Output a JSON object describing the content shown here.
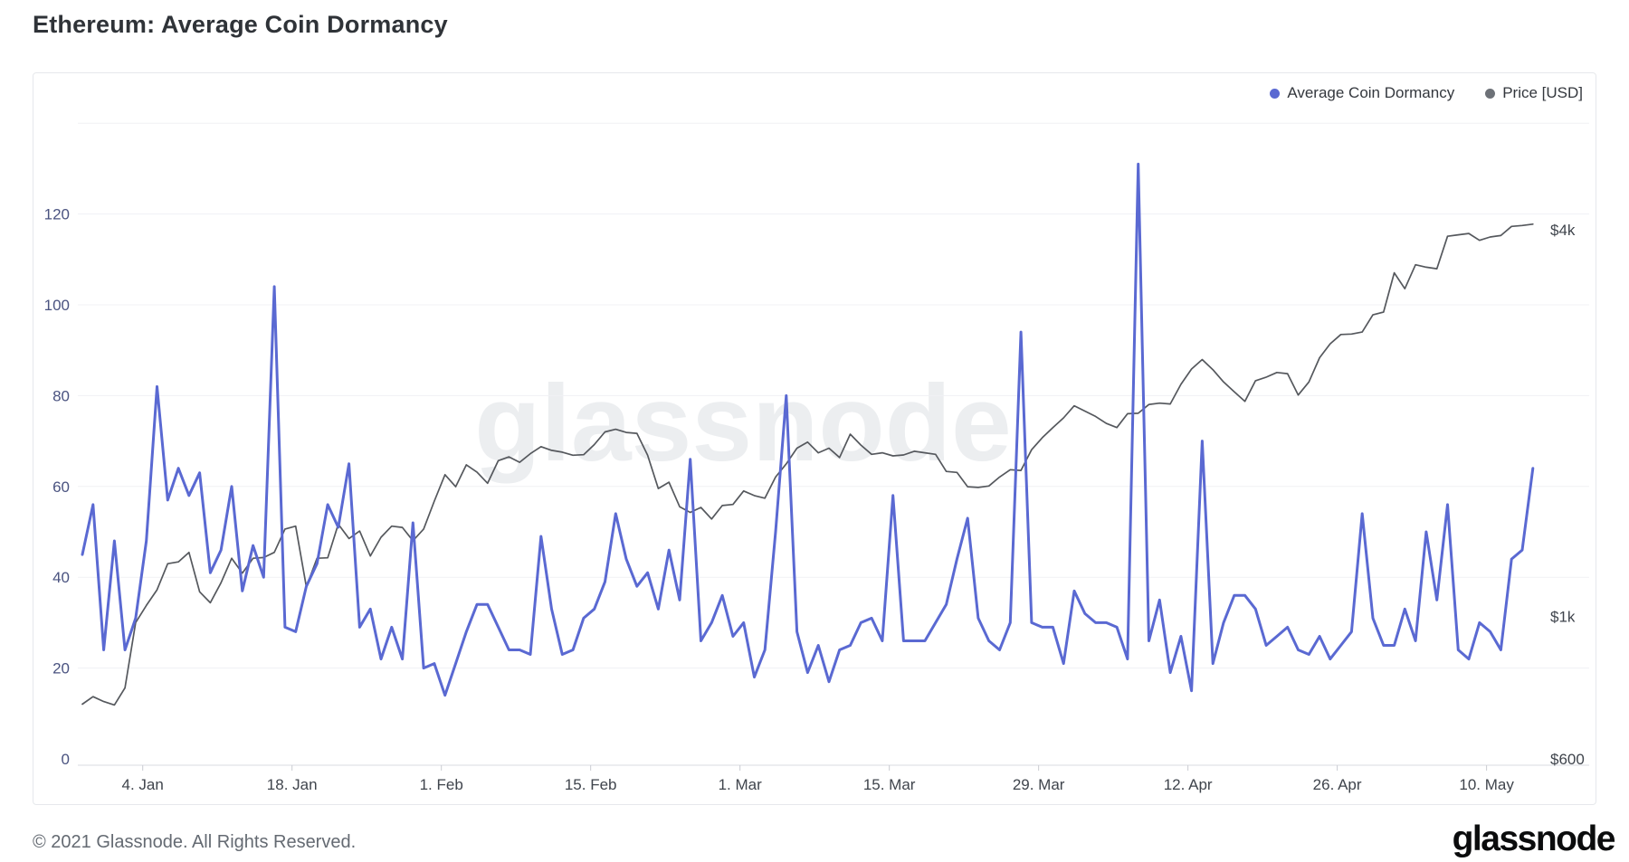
{
  "page_title": "Ethereum: Average Coin Dormancy",
  "legend": {
    "items": [
      {
        "label": "Average Coin Dormancy",
        "color": "#5a69d2"
      },
      {
        "label": "Price [USD]",
        "color": "#6d7177"
      }
    ]
  },
  "watermark": "glassnode",
  "footer": {
    "copyright": "© 2021 Glassnode. All Rights Reserved.",
    "logo": "glassnode"
  },
  "chart_data": {
    "type": "line",
    "title": "Ethereum: Average Coin Dormancy",
    "x_start_date": "2020-12-29",
    "x_interval_days": 1,
    "x_tick_labels": [
      "4. Jan",
      "18. Jan",
      "1. Feb",
      "15. Feb",
      "1. Mar",
      "15. Mar",
      "29. Mar",
      "12. Apr",
      "26. Apr",
      "10. May"
    ],
    "grid": "horizontal-only",
    "legend_position": "top-right",
    "watermark_text": "glassnode",
    "y_axis_left": {
      "labeled_ticks": [
        0,
        20,
        40,
        60,
        80,
        100,
        120
      ],
      "gridline_ticks": [
        20,
        40,
        60,
        80,
        100,
        120,
        140
      ],
      "min": 0,
      "max": 140,
      "label_color": "#4a5380"
    },
    "y_axis_right": {
      "scale": "log",
      "ticks": [
        {
          "label": "$4k",
          "value": 4000
        },
        {
          "label": "$1k",
          "value": 1000
        },
        {
          "label": "$600",
          "value": 600
        }
      ],
      "label_color": "#3f444c"
    },
    "series": [
      {
        "name": "Average Coin Dormancy",
        "axis": "left",
        "color": "#5a69d2",
        "line_width": 3,
        "values": [
          45,
          56,
          24,
          48,
          24,
          31,
          48,
          82,
          57,
          64,
          58,
          63,
          41,
          46,
          60,
          37,
          47,
          40,
          104,
          29,
          28,
          38,
          43,
          56,
          51,
          65,
          29,
          33,
          22,
          29,
          22,
          52,
          20,
          21,
          14,
          21,
          28,
          34,
          34,
          29,
          24,
          24,
          23,
          49,
          33,
          23,
          24,
          31,
          33,
          39,
          54,
          44,
          38,
          41,
          33,
          46,
          35,
          66,
          26,
          30,
          36,
          27,
          30,
          18,
          24,
          50,
          80,
          28,
          19,
          25,
          17,
          24,
          25,
          30,
          31,
          26,
          58,
          26,
          26,
          26,
          30,
          34,
          44,
          53,
          31,
          26,
          24,
          30,
          94,
          30,
          29,
          29,
          21,
          37,
          32,
          30,
          30,
          29,
          22,
          131,
          26,
          35,
          19,
          27,
          15,
          70,
          21,
          30,
          36,
          36,
          33,
          25,
          27,
          29,
          24,
          23,
          27,
          22,
          25,
          28,
          54,
          31,
          25,
          25,
          33,
          26,
          50,
          35,
          56,
          24,
          22,
          30,
          28,
          24,
          44,
          46,
          64
        ]
      },
      {
        "name": "Price [USD]",
        "axis": "right",
        "color": "#55585d",
        "line_width": 1.7,
        "values": [
          730,
          750,
          737,
          728,
          774,
          978,
          1040,
          1100,
          1208,
          1216,
          1258,
          1092,
          1050,
          1128,
          1232,
          1168,
          1232,
          1235,
          1258,
          1368,
          1382,
          1112,
          1232,
          1234,
          1392,
          1322,
          1358,
          1242,
          1328,
          1382,
          1376,
          1312,
          1368,
          1512,
          1662,
          1592,
          1722,
          1678,
          1612,
          1748,
          1772,
          1738,
          1792,
          1838,
          1814,
          1802,
          1782,
          1786,
          1852,
          1938,
          1956,
          1934,
          1928,
          1782,
          1582,
          1618,
          1482,
          1452,
          1478,
          1418,
          1488,
          1494,
          1568,
          1542,
          1528,
          1648,
          1728,
          1828,
          1868,
          1798,
          1828,
          1768,
          1922,
          1848,
          1788,
          1798,
          1778,
          1784,
          1808,
          1798,
          1788,
          1682,
          1676,
          1592,
          1588,
          1596,
          1648,
          1692,
          1688,
          1818,
          1898,
          1968,
          2038,
          2128,
          2088,
          2048,
          1998,
          1968,
          2068,
          2072,
          2138,
          2148,
          2142,
          2298,
          2428,
          2512,
          2422,
          2318,
          2238,
          2162,
          2328,
          2358,
          2398,
          2388,
          2212,
          2318,
          2528,
          2658,
          2748,
          2752,
          2772,
          2948,
          2978,
          3428,
          3238,
          3528,
          3498,
          3478,
          3908,
          3928,
          3948,
          3852,
          3898,
          3918,
          4048,
          4062,
          4082
        ]
      }
    ]
  }
}
